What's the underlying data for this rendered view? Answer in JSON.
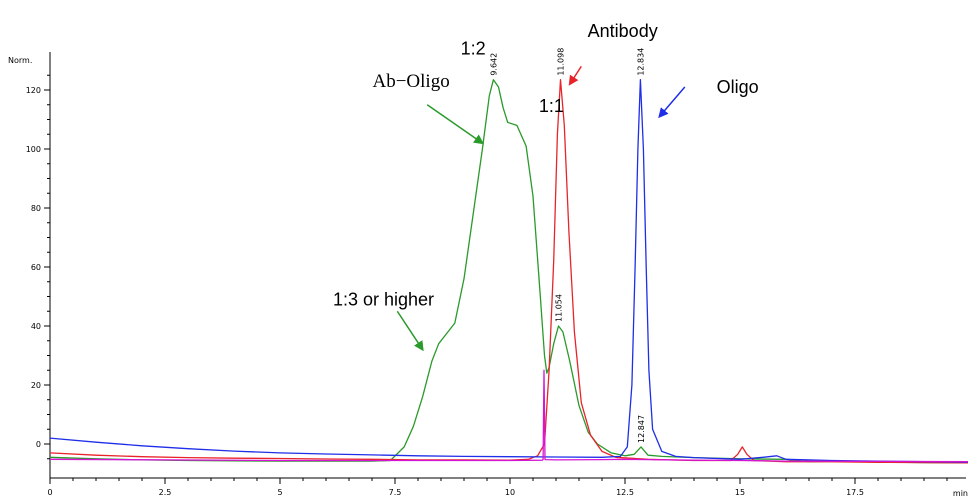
{
  "chart_data": {
    "type": "line",
    "title": "",
    "xlabel": "min",
    "ylabel": "Norm.",
    "xlim": [
      0,
      20
    ],
    "ylim": [
      -8,
      129
    ],
    "x_ticks": [
      0,
      2.5,
      5,
      7.5,
      10,
      12.5,
      15,
      17.5
    ],
    "x_tick_labels": [
      "0",
      "2.5",
      "5",
      "7.5",
      "10",
      "12.5",
      "15",
      "17.5"
    ],
    "y_ticks": [
      0,
      20,
      40,
      60,
      80,
      100,
      120
    ],
    "y_tick_labels": [
      "0",
      "20",
      "40",
      "60",
      "80",
      "100",
      "120"
    ],
    "grid": false,
    "legend": "none",
    "series": [
      {
        "color": "#2a9a2a",
        "points": [
          [
            0,
            -4.5
          ],
          [
            1,
            -5
          ],
          [
            2,
            -5.4
          ],
          [
            3,
            -5.6
          ],
          [
            4,
            -5.7
          ],
          [
            5,
            -5.8
          ],
          [
            6,
            -5.8
          ],
          [
            7,
            -5.8
          ],
          [
            7.4,
            -5.6
          ],
          [
            7.7,
            -1
          ],
          [
            7.9,
            6
          ],
          [
            8.1,
            16
          ],
          [
            8.3,
            28
          ],
          [
            8.45,
            34
          ],
          [
            8.6,
            37
          ],
          [
            8.8,
            41
          ],
          [
            9.0,
            56
          ],
          [
            9.2,
            78
          ],
          [
            9.4,
            100
          ],
          [
            9.55,
            118
          ],
          [
            9.64,
            123.5
          ],
          [
            9.75,
            121
          ],
          [
            9.85,
            114
          ],
          [
            9.95,
            109
          ],
          [
            10.15,
            108
          ],
          [
            10.35,
            101
          ],
          [
            10.5,
            84
          ],
          [
            10.65,
            52
          ],
          [
            10.75,
            30
          ],
          [
            10.8,
            24
          ],
          [
            10.85,
            26
          ],
          [
            10.95,
            34
          ],
          [
            11.054,
            40
          ],
          [
            11.15,
            38
          ],
          [
            11.3,
            28
          ],
          [
            11.5,
            13
          ],
          [
            11.7,
            4
          ],
          [
            11.9,
            0
          ],
          [
            12.2,
            -3
          ],
          [
            12.5,
            -4
          ],
          [
            12.7,
            -3.5
          ],
          [
            12.847,
            -1
          ],
          [
            13.0,
            -3.8
          ],
          [
            13.3,
            -4.2
          ],
          [
            14,
            -4.6
          ],
          [
            15,
            -5
          ],
          [
            16,
            -5.2
          ],
          [
            16.5,
            -6
          ],
          [
            17,
            -5.9
          ],
          [
            18,
            -6.1
          ],
          [
            19,
            -6.3
          ],
          [
            20,
            -6.4
          ]
        ]
      },
      {
        "color": "#e8242a",
        "points": [
          [
            0,
            -3
          ],
          [
            1,
            -3.8
          ],
          [
            2,
            -4.3
          ],
          [
            3,
            -4.6
          ],
          [
            4,
            -4.8
          ],
          [
            5,
            -4.9
          ],
          [
            6,
            -5.1
          ],
          [
            7,
            -5.2
          ],
          [
            8,
            -5.4
          ],
          [
            9,
            -5.4
          ],
          [
            10,
            -5.5
          ],
          [
            10.4,
            -5.2
          ],
          [
            10.6,
            -4
          ],
          [
            10.75,
            0
          ],
          [
            10.85,
            25
          ],
          [
            10.95,
            62
          ],
          [
            11.03,
            105
          ],
          [
            11.098,
            123.5
          ],
          [
            11.18,
            108
          ],
          [
            11.28,
            72
          ],
          [
            11.4,
            38
          ],
          [
            11.55,
            14
          ],
          [
            11.75,
            3
          ],
          [
            12.0,
            -2.5
          ],
          [
            12.3,
            -4.5
          ],
          [
            13,
            -5.2
          ],
          [
            14,
            -5.6
          ],
          [
            14.8,
            -5.6
          ],
          [
            14.95,
            -3.5
          ],
          [
            15.05,
            -1
          ],
          [
            15.15,
            -3.5
          ],
          [
            15.3,
            -5.6
          ],
          [
            16,
            -6
          ],
          [
            17,
            -6
          ],
          [
            18,
            -6.2
          ],
          [
            19,
            -6.3
          ],
          [
            20,
            -6.4
          ]
        ]
      },
      {
        "color": "#1f2ee8",
        "points": [
          [
            0,
            2
          ],
          [
            1,
            0.6
          ],
          [
            2,
            -0.6
          ],
          [
            3,
            -1.6
          ],
          [
            4,
            -2.4
          ],
          [
            5,
            -3
          ],
          [
            6,
            -3.4
          ],
          [
            7,
            -3.7
          ],
          [
            8,
            -4
          ],
          [
            9,
            -4.2
          ],
          [
            10,
            -4.3
          ],
          [
            11,
            -4.4
          ],
          [
            12,
            -4.5
          ],
          [
            12.4,
            -4.2
          ],
          [
            12.55,
            -1
          ],
          [
            12.65,
            20
          ],
          [
            12.72,
            60
          ],
          [
            12.78,
            100
          ],
          [
            12.834,
            123.5
          ],
          [
            12.9,
            100
          ],
          [
            12.96,
            60
          ],
          [
            13.02,
            25
          ],
          [
            13.1,
            5
          ],
          [
            13.3,
            -2.5
          ],
          [
            13.6,
            -4.2
          ],
          [
            14,
            -4.6
          ],
          [
            15,
            -5.2
          ],
          [
            15.5,
            -4.5
          ],
          [
            15.8,
            -4
          ],
          [
            16,
            -5.2
          ],
          [
            17,
            -5.6
          ],
          [
            18,
            -5.8
          ],
          [
            19,
            -6
          ],
          [
            20,
            -6.2
          ]
        ]
      },
      {
        "color": "#d415d4",
        "points": [
          [
            0,
            -5.2
          ],
          [
            5,
            -5.6
          ],
          [
            10,
            -5.6
          ],
          [
            10.7,
            -5.5
          ],
          [
            10.72,
            -5.3
          ],
          [
            10.74,
            25
          ],
          [
            10.76,
            -5.3
          ],
          [
            11,
            -5.4
          ],
          [
            12,
            -5.3
          ],
          [
            12.5,
            -5.2
          ],
          [
            13,
            -5.3
          ],
          [
            14,
            -5.5
          ],
          [
            15,
            -5.6
          ],
          [
            16,
            -5.8
          ],
          [
            18,
            -5.9
          ],
          [
            20,
            -6
          ]
        ]
      }
    ],
    "peak_labels": [
      {
        "text": "9.642",
        "x": 9.642,
        "y": 123.5
      },
      {
        "text": "11.098",
        "x": 11.098,
        "y": 123.5
      },
      {
        "text": "12.834",
        "x": 12.834,
        "y": 123.5
      },
      {
        "text": "11.054",
        "x": 11.054,
        "y": 40
      },
      {
        "text": "12.847",
        "x": 12.847,
        "y": -1
      }
    ],
    "annotations": [
      {
        "text": "Antibody",
        "font": "sans",
        "color": "#e8242a",
        "x": 12.45,
        "y": 138,
        "ax": 11.55,
        "ay": 128,
        "bx": 11.3,
        "by": 122
      },
      {
        "text": "1:2",
        "font": "sans",
        "color": "#2a9a2a",
        "x": 9.2,
        "y": 132,
        "ax": null,
        "ay": null,
        "bx": null,
        "by": null
      },
      {
        "text": "Ab−Oligo",
        "font": "serif",
        "color": "#2a9a2a",
        "x": 7.85,
        "y": 121,
        "ax": 8.2,
        "ay": 115,
        "bx": 9.4,
        "by": 102
      },
      {
        "text": "1:1",
        "font": "sans",
        "color": "#2a9a2a",
        "x": 10.9,
        "y": 112.5,
        "ax": null,
        "ay": null,
        "bx": null,
        "by": null
      },
      {
        "text": "Oligo",
        "font": "sans",
        "color": "#1f2ee8",
        "x": 14.95,
        "y": 119,
        "ax": 13.8,
        "ay": 121,
        "bx": 13.25,
        "by": 111
      },
      {
        "text": "1:3 or higher",
        "font": "sans",
        "color": "#2a9a2a",
        "x": 7.25,
        "y": 47,
        "ax": 7.55,
        "ay": 45,
        "bx": 8.1,
        "by": 32
      }
    ]
  }
}
